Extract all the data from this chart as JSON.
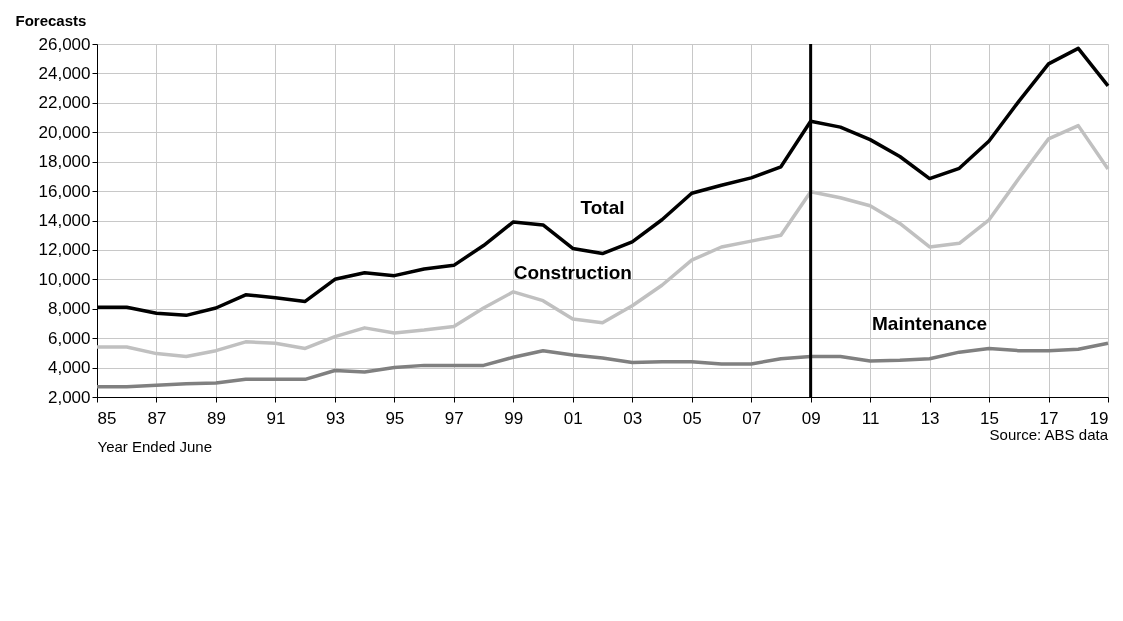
{
  "chart_data": {
    "type": "line",
    "ylabel": "Forecasts",
    "xlabel": "Year Ended June",
    "categories": [
      "85",
      null,
      "87",
      null,
      "89",
      null,
      "91",
      null,
      "93",
      null,
      "95",
      null,
      "97",
      null,
      "99",
      null,
      "01",
      null,
      "03",
      null,
      "05",
      null,
      "07",
      null,
      "09",
      null,
      "11",
      null,
      "13",
      null,
      "15",
      null,
      "17",
      null,
      "19"
    ],
    "series": [
      {
        "name": "Total",
        "color": "#000000",
        "values": [
          8100,
          8100,
          7700,
          7550,
          8050,
          8950,
          8750,
          8500,
          10000,
          10450,
          10250,
          10700,
          10950,
          12300,
          13900,
          13700,
          12100,
          11750,
          12550,
          14050,
          15850,
          16400,
          16900,
          17650,
          20750,
          20350,
          19500,
          18350,
          16850,
          17550,
          19400,
          22100,
          24650,
          25700,
          23150
        ]
      },
      {
        "name": "Construction",
        "color": "#c0c0c0",
        "values": [
          5400,
          5400,
          4950,
          4750,
          5150,
          5750,
          5650,
          5300,
          6100,
          6700,
          6350,
          6550,
          6800,
          8050,
          9150,
          8550,
          7300,
          7050,
          8200,
          9600,
          11300,
          12200,
          12600,
          13000,
          15950,
          15550,
          15000,
          13800,
          12200,
          12450,
          14050,
          16850,
          19550,
          20450,
          17500
        ]
      },
      {
        "name": "Maintenance",
        "color": "#808080",
        "values": [
          2700,
          2700,
          2800,
          2900,
          2950,
          3200,
          3200,
          3200,
          3800,
          3700,
          4000,
          4150,
          4150,
          4150,
          4700,
          5150,
          4850,
          4650,
          4350,
          4400,
          4400,
          4250,
          4250,
          4600,
          4750,
          4750,
          4450,
          4500,
          4600,
          5050,
          5300,
          5150,
          5150,
          5250,
          5650
        ]
      }
    ],
    "ylim": [
      2000,
      26000
    ],
    "yticks": [
      {
        "value": 2000,
        "label": "2,000"
      },
      {
        "value": 4000,
        "label": "4,000"
      },
      {
        "value": 6000,
        "label": "6,000"
      },
      {
        "value": 8000,
        "label": "8,000"
      },
      {
        "value": 10000,
        "label": "10,000"
      },
      {
        "value": 12000,
        "label": "12,000"
      },
      {
        "value": 14000,
        "label": "14,000"
      },
      {
        "value": 16000,
        "label": "16,000"
      },
      {
        "value": 18000,
        "label": "18,000"
      },
      {
        "value": 20000,
        "label": "20,000"
      },
      {
        "value": 22000,
        "label": "22,000"
      },
      {
        "value": 24000,
        "label": "24,000"
      },
      {
        "value": 26000,
        "label": "26,000"
      }
    ],
    "grid": true,
    "legend": false,
    "marker": "none",
    "line_style": "solid",
    "ref_lines": [
      {
        "axis": "x",
        "value": "09",
        "color": "#000000"
      }
    ],
    "annotations": [
      "Source: ABS data"
    ]
  }
}
